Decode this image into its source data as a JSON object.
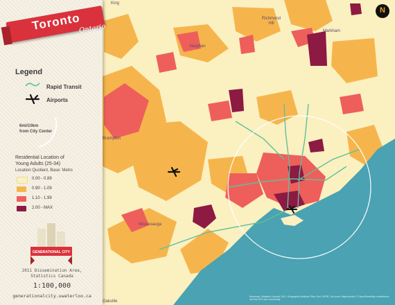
{
  "title": {
    "main": "Toronto",
    "sub": "Ontario"
  },
  "legend": {
    "heading": "Legend",
    "rapid_transit": "Rapid Transit",
    "airports": "Airports",
    "distance_ring": [
      "6mi/10km",
      "from City Center"
    ]
  },
  "variable": {
    "title": [
      "Residential Location of",
      "Young Adults (25-34)"
    ],
    "subtitle": "Location Quotient, Base: Metro",
    "classes": [
      {
        "label": "0.00 - 0.89",
        "color": "#fbf0c0"
      },
      {
        "label": "0.90 - 1.09",
        "color": "#f6b54c"
      },
      {
        "label": "1.10 - 1.99",
        "color": "#ee5f5c"
      },
      {
        "label": "2.00 - MAX",
        "color": "#8c1a43"
      }
    ]
  },
  "logo_text": "GENERATIONAL CITY",
  "source": [
    "2011 Dissemination Area,",
    "Statistics Canada"
  ],
  "scale": "1:100,000",
  "url": "generationalcity.uwaterloo.ca",
  "places": {
    "king": "King",
    "richmond_hill": [
      "Richmond",
      "Hill"
    ],
    "markham": "Markham",
    "vaughan": "Vaughan",
    "brampton": "Brampton",
    "mississauga": "Mississauga",
    "oakville": "Oakville"
  },
  "north_letter": "N",
  "credit": "Basemap: Statistics Canada 2011, Geographic Attribute Files; Esri, HERE, DeLorme, MapmyIndia, © OpenStreetMap contributors, and the GIS user community",
  "colors": {
    "lake": "#4aa2b3",
    "land": "#fbf0c0",
    "transit": "#5fbf9a",
    "accent": "#d9323c"
  }
}
